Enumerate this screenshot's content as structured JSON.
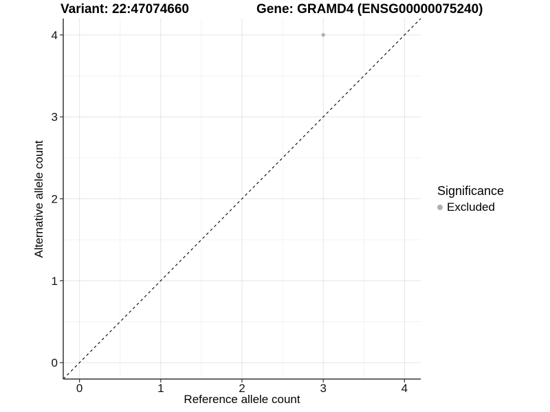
{
  "header": {
    "variant_title": "Variant: 22:47074660",
    "gene_title": "Gene: GRAMD4 (ENSG00000075240)"
  },
  "chart_data": {
    "type": "scatter",
    "title_left": "Variant: 22:47074660",
    "title_right": "Gene: GRAMD4 (ENSG00000075240)",
    "xlabel": "Reference allele count",
    "ylabel": "Alternative allele count",
    "xlim": [
      -0.2,
      4.2
    ],
    "ylim": [
      -0.2,
      4.2
    ],
    "x_ticks": [
      0,
      1,
      2,
      3,
      4
    ],
    "y_ticks": [
      0,
      1,
      2,
      3,
      4
    ],
    "x_minor_ticks": [
      0.5,
      1.5,
      2.5,
      3.5
    ],
    "y_minor_ticks": [
      0.5,
      1.5,
      2.5,
      3.5
    ],
    "grid": true,
    "background": "#ffffff",
    "reference_line": {
      "style": "dashed",
      "color": "#000000",
      "from": [
        -0.2,
        -0.2
      ],
      "to": [
        4.2,
        4.2
      ]
    },
    "series": [
      {
        "name": "Excluded",
        "color": "#b0b0b0",
        "points": [
          {
            "x": 3,
            "y": 4
          }
        ]
      }
    ],
    "legend": {
      "position": "right",
      "title": "Significance",
      "items": [
        {
          "label": "Excluded",
          "color": "#b0b0b0"
        }
      ]
    }
  }
}
